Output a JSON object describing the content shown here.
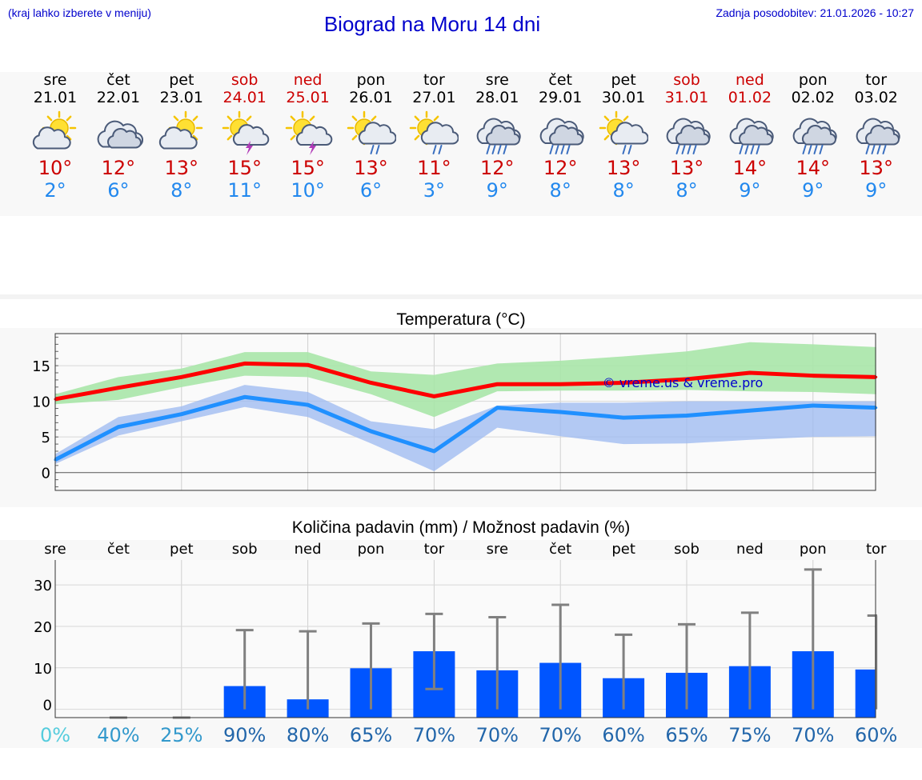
{
  "header": {
    "hint": "(kraj lahko izberete v meniju)",
    "title": "Biograd na Moru 14 dni",
    "updated": "Zadnja posodobitev: 21.01.2026 - 10:27"
  },
  "days": [
    {
      "name": "sre",
      "date": "21.01",
      "weekend": false,
      "icon": "sun-cloud-icon",
      "tmax": "10°",
      "tmin": "2°"
    },
    {
      "name": "čet",
      "date": "22.01",
      "weekend": false,
      "icon": "cloud-icon",
      "tmax": "12°",
      "tmin": "6°"
    },
    {
      "name": "pet",
      "date": "23.01",
      "weekend": false,
      "icon": "sun-cloud-icon",
      "tmax": "13°",
      "tmin": "8°"
    },
    {
      "name": "sob",
      "date": "24.01",
      "weekend": true,
      "icon": "sun-thunder-icon",
      "tmax": "15°",
      "tmin": "11°"
    },
    {
      "name": "ned",
      "date": "25.01",
      "weekend": true,
      "icon": "sun-thunder-icon",
      "tmax": "15°",
      "tmin": "10°"
    },
    {
      "name": "pon",
      "date": "26.01",
      "weekend": false,
      "icon": "sun-rain-icon",
      "tmax": "13°",
      "tmin": "6°"
    },
    {
      "name": "tor",
      "date": "27.01",
      "weekend": false,
      "icon": "sun-rain-icon",
      "tmax": "11°",
      "tmin": "3°"
    },
    {
      "name": "sre",
      "date": "28.01",
      "weekend": false,
      "icon": "rain-icon",
      "tmax": "12°",
      "tmin": "9°"
    },
    {
      "name": "čet",
      "date": "29.01",
      "weekend": false,
      "icon": "rain-icon",
      "tmax": "12°",
      "tmin": "8°"
    },
    {
      "name": "pet",
      "date": "30.01",
      "weekend": false,
      "icon": "sun-rain-icon",
      "tmax": "13°",
      "tmin": "8°"
    },
    {
      "name": "sob",
      "date": "31.01",
      "weekend": true,
      "icon": "rain-icon",
      "tmax": "13°",
      "tmin": "8°"
    },
    {
      "name": "ned",
      "date": "01.02",
      "weekend": true,
      "icon": "rain-icon",
      "tmax": "14°",
      "tmin": "9°"
    },
    {
      "name": "pon",
      "date": "02.02",
      "weekend": false,
      "icon": "rain-icon",
      "tmax": "14°",
      "tmin": "9°"
    },
    {
      "name": "tor",
      "date": "03.02",
      "weekend": false,
      "icon": "rain-icon",
      "tmax": "13°",
      "tmin": "9°"
    }
  ],
  "colors": {
    "max_line": "#ff0000",
    "max_band": "#a8e6a8",
    "min_line": "#2090ff",
    "min_band": "#9bb8f0",
    "bar": "#0055ff",
    "error": "#808080",
    "link": "#0000cc"
  },
  "chart_data": [
    {
      "type": "line",
      "title": "Temperatura (°C)",
      "x": [
        0,
        1,
        2,
        3,
        4,
        5,
        6,
        7,
        8,
        9,
        10,
        11,
        12,
        13
      ],
      "ylim": [
        -2.5,
        19.5
      ],
      "yticks": [
        0,
        5,
        10,
        15
      ],
      "watermark": "© vreme.us & vreme.pro",
      "series": [
        {
          "name": "max",
          "values": [
            10.3,
            11.9,
            13.4,
            15.3,
            15.1,
            12.6,
            10.7,
            12.4,
            12.4,
            12.6,
            13.1,
            14.0,
            13.6,
            13.4
          ],
          "band_low": [
            9.6,
            10.2,
            12.0,
            13.6,
            13.4,
            11.0,
            7.8,
            11.4,
            11.5,
            11.5,
            11.6,
            11.4,
            11.3,
            11.0
          ],
          "band_high": [
            11.0,
            13.4,
            14.6,
            16.9,
            16.9,
            14.2,
            13.7,
            15.3,
            15.7,
            16.3,
            17.0,
            18.3,
            18.0,
            17.6
          ]
        },
        {
          "name": "min",
          "values": [
            1.8,
            6.4,
            8.2,
            10.6,
            9.5,
            5.8,
            3.0,
            9.1,
            8.5,
            7.7,
            8.0,
            8.7,
            9.4,
            9.1
          ],
          "band_low": [
            1.2,
            5.2,
            7.2,
            9.2,
            7.8,
            4.1,
            0.2,
            6.3,
            5.1,
            4.0,
            4.1,
            4.6,
            5.0,
            5.1
          ],
          "band_high": [
            2.6,
            7.8,
            9.3,
            12.3,
            11.3,
            7.2,
            6.1,
            9.4,
            9.8,
            9.8,
            10.0,
            10.0,
            10.0,
            10.0
          ]
        }
      ]
    },
    {
      "type": "bar",
      "title": "Količina padavin (mm) / Možnost padavin (%)",
      "categories": [
        "sre",
        "čet",
        "pet",
        "sob",
        "ned",
        "pon",
        "tor",
        "sre",
        "čet",
        "pet",
        "sob",
        "ned",
        "pon",
        "tor"
      ],
      "values": [
        0,
        0,
        0,
        5.6,
        2.4,
        9.9,
        14.0,
        9.4,
        11.2,
        7.5,
        8.8,
        10.4,
        14.0,
        9.6
      ],
      "err_low": [
        0,
        0,
        0,
        0,
        0,
        0,
        4.9,
        0,
        0,
        0,
        0,
        0,
        0,
        0
      ],
      "err_high": [
        0,
        0.2,
        0.2,
        19.1,
        18.8,
        20.7,
        23.0,
        22.2,
        25.2,
        18.0,
        20.5,
        23.3,
        33.7,
        22.6
      ],
      "ylim": [
        -2,
        36
      ],
      "yticks": [
        0,
        10,
        20,
        30
      ],
      "probability": [
        "0%",
        "40%",
        "25%",
        "90%",
        "80%",
        "65%",
        "70%",
        "70%",
        "70%",
        "60%",
        "65%",
        "75%",
        "70%",
        "60%"
      ],
      "probability_colors": [
        "#55ccdd",
        "#3399cc",
        "#3399cc",
        "#2266aa",
        "#2266aa",
        "#2266aa",
        "#2266aa",
        "#2266aa",
        "#2266aa",
        "#2266aa",
        "#2266aa",
        "#2266aa",
        "#2266aa",
        "#2266aa"
      ]
    }
  ]
}
